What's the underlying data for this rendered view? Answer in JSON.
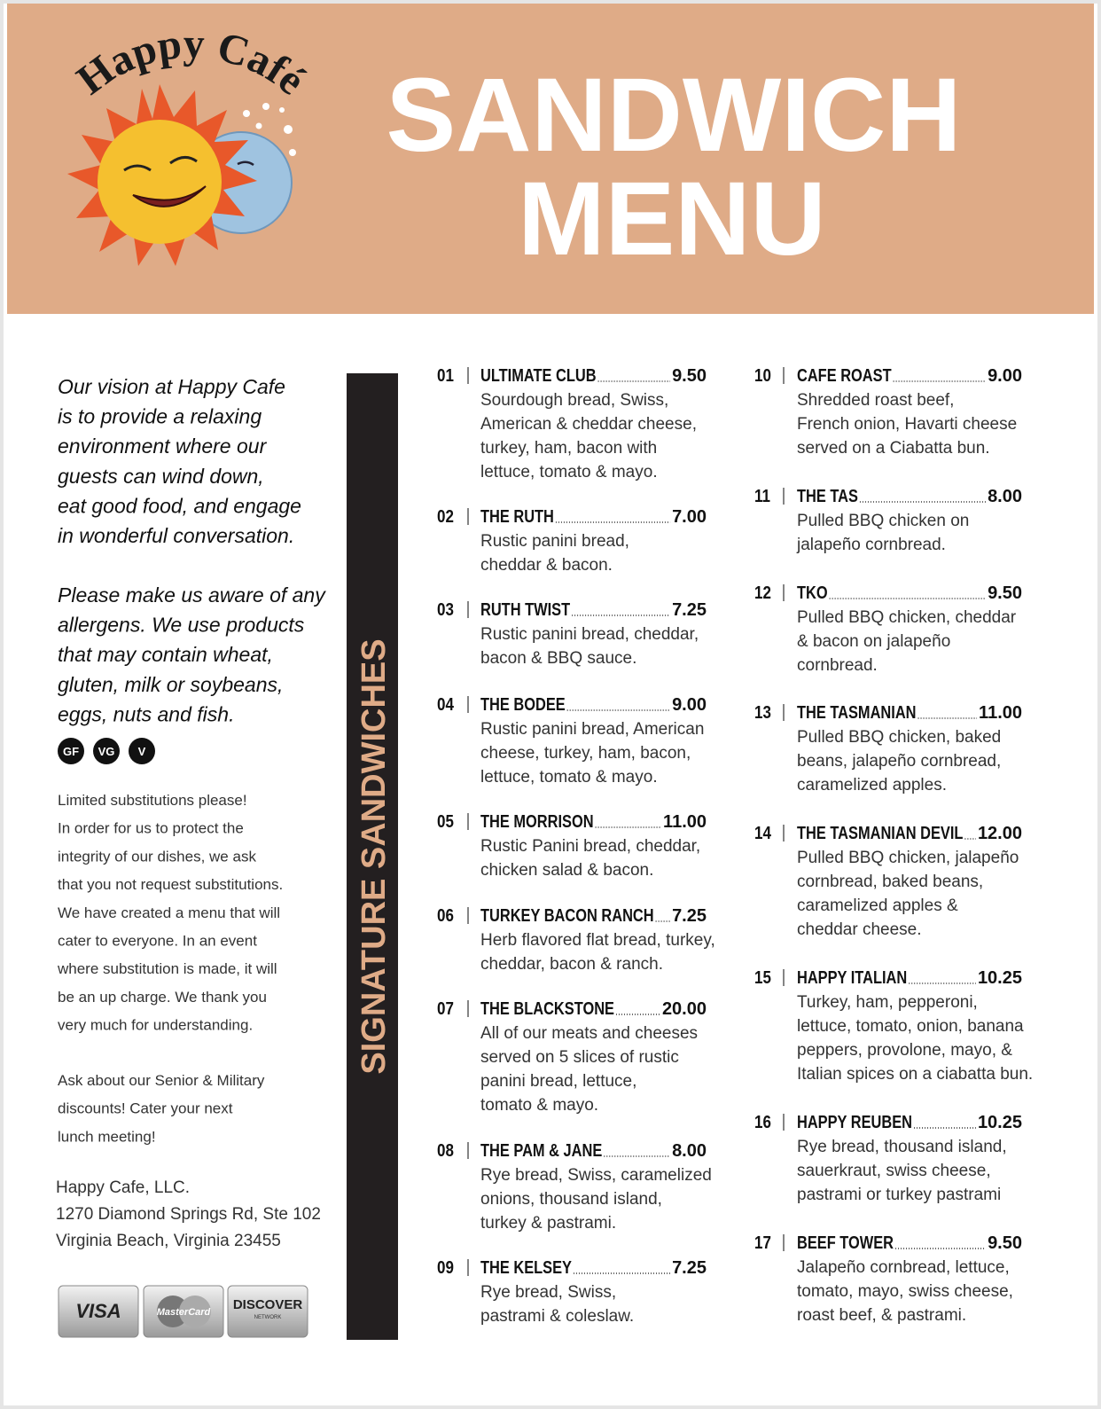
{
  "header": {
    "brand": "Happy Café",
    "title_line1": "SANDWICH",
    "title_line2": "MENU"
  },
  "sidebar": {
    "vision": [
      "Our vision at Happy Cafe",
      "is to provide a relaxing",
      "environment where our",
      "guests can wind down,",
      "eat good food, and engage",
      "in wonderful conversation."
    ],
    "allergens": [
      "Please make us aware of any",
      "allergens. We use products",
      "that may contain wheat,",
      "gluten, milk or soybeans,",
      "eggs, nuts and fish."
    ],
    "badges": [
      "GF",
      "VG",
      "V"
    ],
    "policy": [
      "Limited substitutions please!",
      "In order for us to protect the",
      "integrity of our dishes, we ask",
      "that you not request substitutions.",
      "We have created a menu that will",
      "cater to everyone. In an event",
      "where substitution is made, it will",
      "be an up charge. We thank you",
      "very much for understanding."
    ],
    "discounts": [
      "Ask about our Senior & Military",
      "discounts! Cater your next",
      "lunch meeting!"
    ],
    "address": [
      "Happy Cafe, LLC.",
      "1270 Diamond Springs Rd, Ste 102",
      "Virginia Beach, Virginia 23455"
    ],
    "cards": [
      "VISA",
      "MasterCard",
      "DISCOVER",
      "NETWORK"
    ]
  },
  "section_label": "SIGNATURE SANDWICHES",
  "items": [
    {
      "number": "01",
      "name": "ULTIMATE CLUB",
      "price": "9.50",
      "description": [
        "Sourdough bread, Swiss,",
        "American  & cheddar cheese,",
        "turkey, ham, bacon with",
        "lettuce, tomato & mayo."
      ]
    },
    {
      "number": "02",
      "name": "THE RUTH",
      "price": "7.00",
      "description": [
        "Rustic panini bread,",
        "cheddar & bacon."
      ]
    },
    {
      "number": "03",
      "name": "RUTH TWIST",
      "price": "7.25",
      "description": [
        "Rustic panini bread, cheddar,",
        "bacon & BBQ sauce."
      ]
    },
    {
      "number": "04",
      "name": "THE BODEE",
      "price": "9.00",
      "description": [
        "Rustic panini bread, American",
        "cheese, turkey, ham, bacon,",
        "lettuce, tomato & mayo."
      ]
    },
    {
      "number": "05",
      "name": "THE MORRISON",
      "price": "11.00",
      "description": [
        "Rustic Panini bread, cheddar,",
        "chicken salad & bacon."
      ]
    },
    {
      "number": "06",
      "name": "TURKEY BACON RANCH",
      "price": "7.25",
      "description": [
        "Herb flavored flat bread, turkey,",
        "cheddar, bacon & ranch."
      ]
    },
    {
      "number": "07",
      "name": "THE BLACKSTONE",
      "price": "20.00",
      "description": [
        "All of our meats and cheeses",
        "served on 5 slices of rustic",
        "panini bread, lettuce,",
        "tomato & mayo."
      ]
    },
    {
      "number": "08",
      "name": "THE PAM & JANE",
      "price": "8.00",
      "description": [
        "Rye bread, Swiss, caramelized",
        "onions, thousand island,",
        "turkey & pastrami."
      ]
    },
    {
      "number": "09",
      "name": "THE KELSEY",
      "price": "7.25",
      "description": [
        "Rye bread, Swiss,",
        "pastrami & coleslaw."
      ]
    },
    {
      "number": "10",
      "name": "CAFE ROAST",
      "price": "9.00",
      "description": [
        "Shredded roast beef,",
        "French onion, Havarti cheese",
        "served on a Ciabatta bun."
      ]
    },
    {
      "number": "11",
      "name": "THE TAS",
      "price": "8.00",
      "description": [
        "Pulled BBQ chicken on",
        "jalapeño cornbread."
      ]
    },
    {
      "number": "12",
      "name": "TKO",
      "price": "9.50",
      "description": [
        "Pulled BBQ chicken, cheddar",
        "& bacon on jalapeño",
        "cornbread."
      ]
    },
    {
      "number": "13",
      "name": "THE TASMANIAN",
      "price": "11.00",
      "description": [
        "Pulled BBQ chicken, baked",
        "beans, jalapeño cornbread,",
        "caramelized apples."
      ]
    },
    {
      "number": "14",
      "name": "THE TASMANIAN DEVIL",
      "price": "12.00",
      "description": [
        "Pulled BBQ chicken, jalapeño",
        "cornbread, baked beans,",
        "caramelized apples &",
        "cheddar cheese."
      ]
    },
    {
      "number": "15",
      "name": "HAPPY ITALIAN",
      "price": "10.25",
      "description": [
        "Turkey, ham, pepperoni,",
        "lettuce, tomato, onion, banana",
        "peppers, provolone, mayo, &",
        "Italian spices on a ciabatta bun."
      ]
    },
    {
      "number": "16",
      "name": "HAPPY REUBEN",
      "price": "10.25",
      "description": [
        "Rye bread, thousand island,",
        "sauerkraut, swiss cheese,",
        "pastrami or turkey pastrami"
      ]
    },
    {
      "number": "17",
      "name": "BEEF TOWER",
      "price": "9.50",
      "description": [
        "Jalapeño cornbread, lettuce,",
        "tomato, mayo, swiss cheese,",
        "roast beef, & pastrami."
      ]
    }
  ]
}
